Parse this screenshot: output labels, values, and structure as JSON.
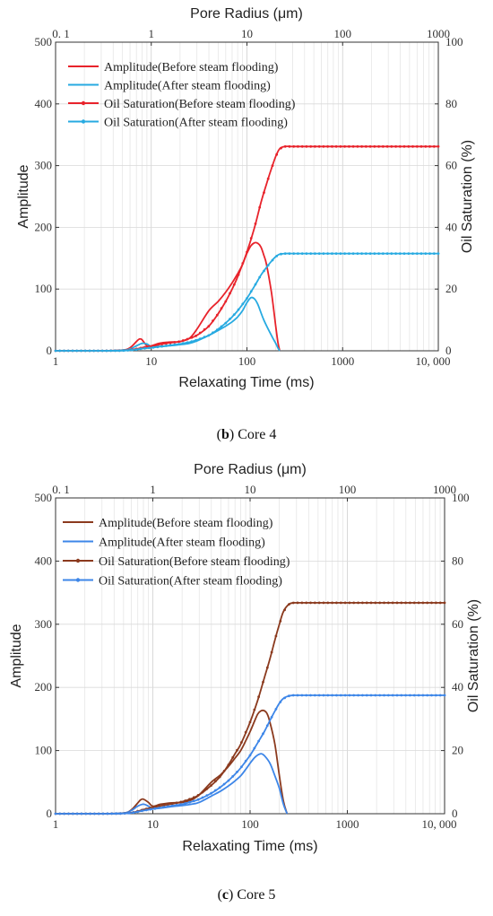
{
  "chart_data": [
    {
      "type": "line",
      "caption_letter": "b",
      "caption_text": " Core 4",
      "xlabel": "Relaxating Time (ms)",
      "top_xlabel": "Pore Radius (μm)",
      "ylabel": "Amplitude",
      "y2label": "Oil Saturation (%)",
      "xscale": "log",
      "xlim": [
        1,
        10000
      ],
      "ylim": [
        0,
        500
      ],
      "y2lim": [
        0,
        100
      ],
      "grid": true,
      "legend_position": "top-left",
      "x_ticks": [
        "1",
        "10",
        "100",
        "1000",
        "10, 000"
      ],
      "top_ticks": [
        "0. 1",
        "1",
        "10",
        "100",
        "1000"
      ],
      "y_ticks": [
        "0",
        "100",
        "200",
        "300",
        "400",
        "500"
      ],
      "y2_ticks": [
        "0",
        "20",
        "40",
        "60",
        "80",
        "100"
      ],
      "series": [
        {
          "name": "Amplitude(Before steam flooding)",
          "color": "#e8232b",
          "axis": "left",
          "markers": false,
          "x": [
            1,
            3,
            5,
            6,
            7,
            7.5,
            8,
            9,
            10,
            12,
            15,
            20,
            25,
            30,
            40,
            50,
            60,
            70,
            80,
            90,
            100,
            110,
            120,
            130,
            140,
            150,
            160,
            180,
            200,
            210,
            220
          ],
          "y": [
            0,
            0,
            1,
            5,
            15,
            19,
            18,
            8,
            8,
            12,
            14,
            15,
            20,
            35,
            65,
            80,
            95,
            110,
            125,
            140,
            158,
            170,
            175,
            174,
            168,
            155,
            140,
            95,
            40,
            15,
            0
          ]
        },
        {
          "name": "Amplitude(After steam flooding)",
          "color": "#27aae1",
          "axis": "left",
          "markers": false,
          "x": [
            1,
            3,
            5,
            6,
            7,
            8,
            9,
            10,
            12,
            15,
            20,
            25,
            30,
            40,
            50,
            60,
            70,
            80,
            90,
            100,
            110,
            120,
            130,
            150,
            180,
            200,
            210,
            220
          ],
          "y": [
            0,
            0,
            1,
            3,
            8,
            12,
            11,
            7,
            7,
            8,
            10,
            12,
            16,
            25,
            33,
            40,
            47,
            55,
            65,
            78,
            86,
            84,
            75,
            50,
            25,
            12,
            5,
            0
          ]
        },
        {
          "name": "Oil Saturation(Before steam flooding)",
          "color": "#e8232b",
          "axis": "right",
          "markers": true,
          "x": [
            1,
            3,
            5,
            6,
            7,
            8,
            10,
            12,
            15,
            20,
            25,
            30,
            40,
            50,
            60,
            70,
            80,
            100,
            120,
            140,
            160,
            180,
            200,
            220,
            250,
            300,
            400,
            600,
            1000,
            2000,
            5000,
            10000
          ],
          "y": [
            0,
            0,
            0.1,
            0.3,
            0.6,
            1,
            1.5,
            2,
            2.5,
            3,
            4,
            5,
            8,
            12,
            16,
            20,
            24,
            32,
            40,
            48,
            54,
            59,
            63,
            65.5,
            66.2,
            66.2,
            66.2,
            66.2,
            66.2,
            66.2,
            66.2,
            66.2
          ]
        },
        {
          "name": "Oil Saturation(After steam flooding)",
          "color": "#27aae1",
          "axis": "right",
          "markers": true,
          "x": [
            1,
            3,
            5,
            6,
            7,
            8,
            10,
            12,
            15,
            20,
            25,
            30,
            40,
            50,
            60,
            70,
            80,
            100,
            120,
            140,
            160,
            180,
            200,
            220,
            250,
            300,
            400,
            600,
            1000,
            2000,
            5000,
            10000
          ],
          "y": [
            0,
            0,
            0.05,
            0.2,
            0.4,
            0.7,
            1,
            1.3,
            1.7,
            2.2,
            2.8,
            3.5,
            5,
            7,
            9,
            11,
            13,
            17,
            21,
            24.5,
            27,
            29,
            30.5,
            31.3,
            31.5,
            31.5,
            31.5,
            31.5,
            31.5,
            31.5,
            31.5,
            31.5
          ]
        }
      ]
    },
    {
      "type": "line",
      "caption_letter": "c",
      "caption_text": " Core 5",
      "xlabel": "Relaxating Time (ms)",
      "top_xlabel": "Pore Radius (μm)",
      "ylabel": "Amplitude",
      "y2label": "Oil Saturation (%)",
      "xscale": "log",
      "xlim": [
        1,
        10000
      ],
      "ylim": [
        0,
        500
      ],
      "y2lim": [
        0,
        100
      ],
      "grid": true,
      "legend_position": "top-left",
      "x_ticks": [
        "1",
        "10",
        "100",
        "1000",
        "10, 000"
      ],
      "top_ticks": [
        "0. 1",
        "1",
        "10",
        "100",
        "1000"
      ],
      "y_ticks": [
        "0",
        "100",
        "200",
        "300",
        "400",
        "500"
      ],
      "y2_ticks": [
        "0",
        "20",
        "40",
        "60",
        "80",
        "100"
      ],
      "series": [
        {
          "name": "Amplitude(Before steam flooding)",
          "color": "#8b3a1e",
          "axis": "left",
          "markers": false,
          "x": [
            1,
            3,
            5,
            6,
            7,
            7.5,
            8,
            9,
            10,
            12,
            15,
            20,
            25,
            30,
            40,
            50,
            60,
            70,
            80,
            90,
            100,
            110,
            120,
            130,
            140,
            150,
            160,
            180,
            200,
            220,
            240
          ],
          "y": [
            0,
            0,
            1,
            6,
            17,
            22,
            23,
            18,
            12,
            15,
            17,
            18,
            22,
            30,
            50,
            62,
            75,
            88,
            100,
            115,
            130,
            145,
            158,
            163,
            163,
            158,
            145,
            110,
            60,
            20,
            0
          ]
        },
        {
          "name": "Amplitude(After steam flooding)",
          "color": "#3d86e8",
          "axis": "left",
          "markers": false,
          "x": [
            1,
            3,
            5,
            6,
            7,
            8,
            9,
            10,
            12,
            15,
            20,
            25,
            30,
            40,
            50,
            60,
            70,
            80,
            90,
            100,
            110,
            120,
            130,
            140,
            160,
            180,
            200,
            220,
            240
          ],
          "y": [
            0,
            0,
            1,
            5,
            12,
            15,
            12,
            8,
            9,
            11,
            13,
            15,
            18,
            28,
            36,
            44,
            52,
            60,
            70,
            80,
            88,
            93,
            95,
            92,
            80,
            60,
            40,
            15,
            0
          ]
        },
        {
          "name": "Oil Saturation(Before steam flooding)",
          "color": "#8b3a1e",
          "axis": "right",
          "markers": true,
          "x": [
            1,
            3,
            5,
            6,
            7,
            8,
            10,
            12,
            15,
            20,
            25,
            30,
            40,
            50,
            60,
            70,
            80,
            100,
            120,
            140,
            160,
            180,
            200,
            220,
            250,
            280,
            300,
            400,
            600,
            1000,
            2000,
            5000,
            10000
          ],
          "y": [
            0,
            0,
            0.1,
            0.3,
            0.8,
            1.3,
            2,
            2.5,
            3,
            3.8,
            4.8,
            6,
            9,
            12,
            15.5,
            19,
            22,
            29,
            36,
            43,
            49,
            55,
            60,
            64,
            66.3,
            66.8,
            66.8,
            66.8,
            66.8,
            66.8,
            66.8,
            66.8,
            66.8
          ]
        },
        {
          "name": "Oil Saturation(After steam flooding)",
          "color": "#3d86e8",
          "axis": "right",
          "markers": true,
          "x": [
            1,
            3,
            5,
            6,
            7,
            8,
            10,
            12,
            15,
            20,
            25,
            30,
            40,
            50,
            60,
            70,
            80,
            100,
            120,
            140,
            160,
            180,
            200,
            220,
            250,
            280,
            300,
            400,
            600,
            1000,
            2000,
            5000,
            10000
          ],
          "y": [
            0,
            0,
            0.08,
            0.25,
            0.6,
            1,
            1.5,
            1.9,
            2.4,
            3,
            3.8,
            4.6,
            6.5,
            8.5,
            10.5,
            12.5,
            14.5,
            18.5,
            22.5,
            26,
            29.5,
            32.5,
            35,
            36.5,
            37.3,
            37.5,
            37.5,
            37.5,
            37.5,
            37.5,
            37.5,
            37.5,
            37.5
          ]
        }
      ]
    }
  ]
}
